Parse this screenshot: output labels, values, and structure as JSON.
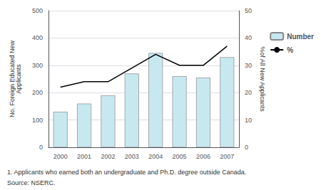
{
  "chart_data": {
    "type": "bar",
    "categories": [
      "2000",
      "2001",
      "2002",
      "2003",
      "2004",
      "2005",
      "2006",
      "2007"
    ],
    "series": [
      {
        "name": "Number",
        "type": "bar",
        "color": "#c8e8f0",
        "values": [
          130,
          160,
          190,
          270,
          345,
          260,
          255,
          330
        ]
      },
      {
        "name": "%",
        "type": "line",
        "color": "#000000",
        "axis": "y2",
        "values": [
          22,
          24,
          24,
          29,
          34,
          30,
          30,
          37
        ]
      }
    ],
    "ylabel": "No. Foreign Educated New\nApplicants",
    "y2label": "%of All New Applicants",
    "ylim": [
      0,
      500
    ],
    "yticks": [
      0,
      100,
      200,
      300,
      400,
      500
    ],
    "y2lim": [
      0,
      50
    ],
    "y2ticks": [
      0,
      10,
      20,
      30,
      40,
      50
    ],
    "grid": true,
    "legend": "right",
    "annotations": [
      "1. Applicants who earned both an undergraduate and Ph.D. degree outside Canada.",
      "Source: NSERC."
    ]
  }
}
